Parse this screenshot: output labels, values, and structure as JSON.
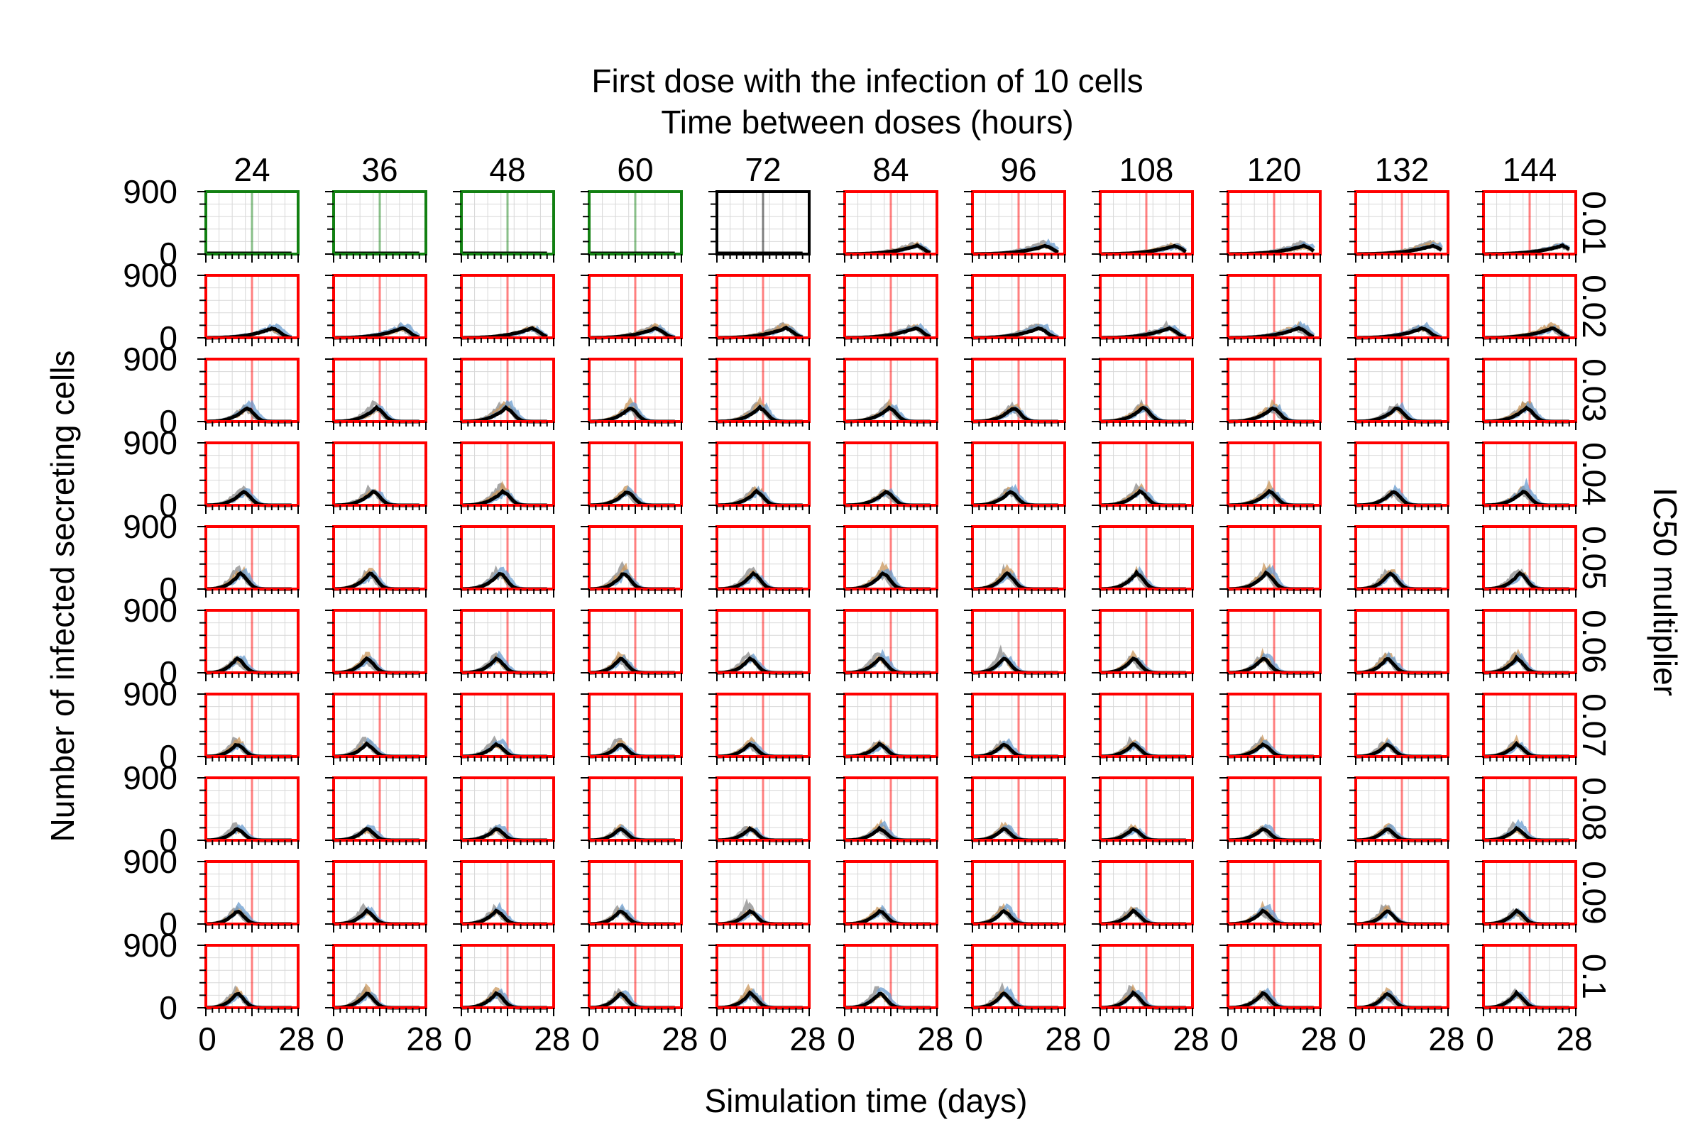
{
  "chart_data": {
    "type": "line",
    "title": "First dose with the infection of 10 cells",
    "subtitle": "Time between doses (hours)",
    "xlabel": "Simulation time (days)",
    "ylabel": "Number of infected secreting cells",
    "right_label": "IC50 multiplier",
    "xlim": [
      0,
      28
    ],
    "ylim": [
      0,
      900
    ],
    "x_tick_labels": [
      "0",
      "28"
    ],
    "y_tick_labels": [
      "0",
      "900"
    ],
    "columns": [
      "24",
      "36",
      "48",
      "60",
      "72",
      "84",
      "96",
      "108",
      "120",
      "132",
      "144"
    ],
    "rows": [
      "0.01",
      "0.02",
      "0.03",
      "0.04",
      "0.05",
      "0.06",
      "0.07",
      "0.08",
      "0.09",
      "0.1"
    ],
    "series_colors": {
      "mean": "#000000",
      "replicate_a": "#6a9ccf",
      "replicate_b": "#c9955a",
      "replicate_c": "#8a8a8a"
    },
    "frame_colors": {
      "green": "#128012",
      "black": "#000000",
      "red": "#ff0000"
    },
    "frame_color_by_cell": [
      [
        "green",
        "green",
        "green",
        "green",
        "black",
        "red",
        "red",
        "red",
        "red",
        "red",
        "red"
      ],
      [
        "red",
        "red",
        "red",
        "red",
        "red",
        "red",
        "red",
        "red",
        "red",
        "red",
        "red"
      ],
      [
        "red",
        "red",
        "red",
        "red",
        "red",
        "red",
        "red",
        "red",
        "red",
        "red",
        "red"
      ],
      [
        "red",
        "red",
        "red",
        "red",
        "red",
        "red",
        "red",
        "red",
        "red",
        "red",
        "red"
      ],
      [
        "red",
        "red",
        "red",
        "red",
        "red",
        "red",
        "red",
        "red",
        "red",
        "red",
        "red"
      ],
      [
        "red",
        "red",
        "red",
        "red",
        "red",
        "red",
        "red",
        "red",
        "red",
        "red",
        "red"
      ],
      [
        "red",
        "red",
        "red",
        "red",
        "red",
        "red",
        "red",
        "red",
        "red",
        "red",
        "red"
      ],
      [
        "red",
        "red",
        "red",
        "red",
        "red",
        "red",
        "red",
        "red",
        "red",
        "red",
        "red"
      ],
      [
        "red",
        "red",
        "red",
        "red",
        "red",
        "red",
        "red",
        "red",
        "red",
        "red",
        "red"
      ],
      [
        "red",
        "red",
        "red",
        "red",
        "red",
        "red",
        "red",
        "red",
        "red",
        "red",
        "red"
      ]
    ],
    "dose_line_day": 14,
    "peak_by_row": [
      {
        "day": 22,
        "value": 110
      },
      {
        "day": 21,
        "value": 130
      },
      {
        "day": 13,
        "value": 190
      },
      {
        "day": 12,
        "value": 190
      },
      {
        "day": 11,
        "value": 220
      },
      {
        "day": 10,
        "value": 200
      },
      {
        "day": 10,
        "value": 170
      },
      {
        "day": 10,
        "value": 160
      },
      {
        "day": 10,
        "value": 180
      },
      {
        "day": 10,
        "value": 200
      }
    ]
  }
}
